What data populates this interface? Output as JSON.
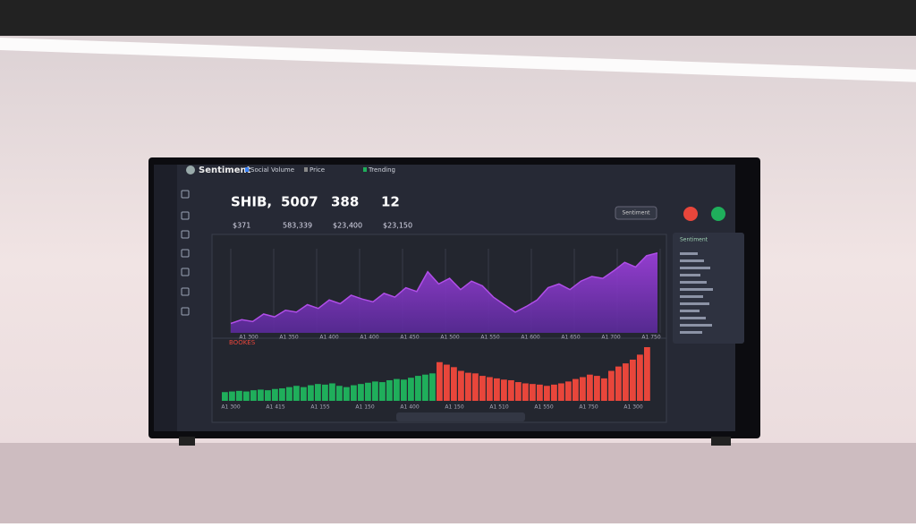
{
  "app": {
    "name": "Sentiment",
    "tabs": [
      "Social Volume",
      "Price",
      "Trending"
    ]
  },
  "stats": [
    {
      "label": "SHIB,",
      "value": "$371"
    },
    {
      "label": "5007",
      "value": "583,339"
    },
    {
      "label": "388",
      "value": "$23,400"
    },
    {
      "label": "12",
      "value": "$23,150"
    }
  ],
  "buttons": [
    "Sentiment"
  ],
  "price_chart": {
    "colors": {
      "area": "#8b3fd6",
      "line": "#b04ee8"
    },
    "values": [
      10,
      14,
      12,
      20,
      17,
      24,
      22,
      30,
      26,
      35,
      31,
      40,
      36,
      33,
      42,
      38,
      48,
      44,
      65,
      52,
      58,
      46,
      55,
      50,
      38,
      30,
      22,
      28,
      35,
      48,
      52,
      46,
      55,
      60,
      58,
      66,
      75,
      70,
      82,
      85
    ],
    "x_labels": [
      "A1 300",
      "A1 350",
      "A1 400",
      "A1 400",
      "A1 450",
      "A1 500",
      "A1 550",
      "A1 600",
      "A1 650",
      "A1 700",
      "A1 750"
    ]
  },
  "sentiment_chart": {
    "title": "BOOKES",
    "colors": {
      "up": "#1fae5b",
      "down": "#e8463b"
    },
    "up": [
      14,
      15,
      16,
      15,
      17,
      18,
      17,
      19,
      20,
      22,
      24,
      22,
      25,
      27,
      26,
      28,
      24,
      22,
      25,
      27,
      29,
      31,
      30,
      33,
      35,
      34,
      37,
      40,
      42,
      44
    ],
    "down": [
      62,
      58,
      54,
      48,
      45,
      44,
      40,
      38,
      36,
      34,
      33,
      30,
      28,
      27,
      26,
      24,
      26,
      28,
      31,
      35,
      38,
      42,
      40,
      36,
      48,
      55,
      60,
      66,
      74,
      86
    ],
    "x_labels": [
      "A1 300",
      "A1 415",
      "A1 155",
      "A1 150",
      "A1 400",
      "A1 150",
      "A1 510",
      "A1 550",
      "A1 750",
      "A1 300"
    ]
  },
  "side_panel": {
    "title": "Sentiment"
  }
}
